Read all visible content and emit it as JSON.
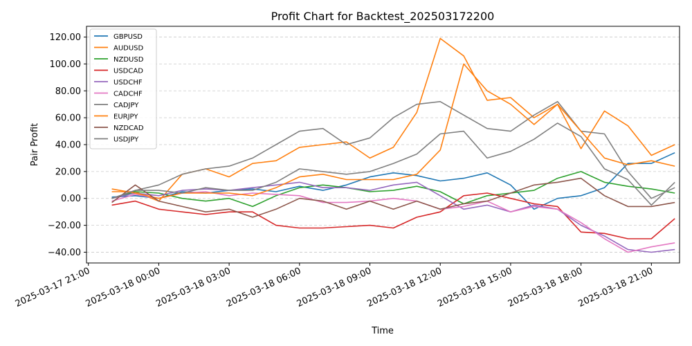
{
  "chart_data": {
    "type": "line",
    "title": "Profit Chart for Backtest_202503172200",
    "xlabel": "Time",
    "ylabel": "Pair Profit",
    "x_tick_labels": [
      "2025-03-17 21:00",
      "2025-03-18 00:00",
      "2025-03-18 03:00",
      "2025-03-18 06:00",
      "2025-03-18 09:00",
      "2025-03-18 12:00",
      "2025-03-18 15:00",
      "2025-03-18 18:00",
      "2025-03-18 21:00"
    ],
    "x_tick_hours": [
      0,
      3,
      6,
      9,
      12,
      15,
      18,
      21,
      24
    ],
    "xlim_hours": [
      -0.08,
      25.2
    ],
    "y_ticks": [
      -40,
      -20,
      0,
      20,
      40,
      60,
      80,
      100,
      120
    ],
    "y_tick_labels": [
      "−40.00",
      "−20.00",
      "0.00",
      "20.00",
      "40.00",
      "60.00",
      "80.00",
      "100.00",
      "120.00"
    ],
    "ylim": [
      -48,
      128
    ],
    "grid": "y-dashed",
    "legend_position": "top-left",
    "x_hours": [
      1,
      2,
      3,
      4,
      5,
      6,
      7,
      8,
      9,
      10,
      11,
      12,
      13,
      14,
      15,
      16,
      17,
      18,
      19,
      20,
      21,
      22,
      23,
      24,
      25
    ],
    "series": [
      {
        "name": "GBPUSD",
        "color": "#1f77b4",
        "values": [
          1,
          2,
          0,
          5,
          4,
          6,
          7,
          5,
          9,
          6,
          10,
          16,
          19,
          17,
          13,
          15,
          19,
          10,
          -8,
          0,
          2,
          8,
          26,
          26,
          34
        ]
      },
      {
        "name": "AUDUSD",
        "color": "#ff7f0e",
        "values": [
          5,
          5,
          -2,
          18,
          22,
          16,
          26,
          28,
          38,
          40,
          42,
          30,
          38,
          64,
          119,
          106,
          73,
          75,
          60,
          70,
          37,
          65,
          54,
          32,
          40
        ]
      },
      {
        "name": "NZDUSD",
        "color": "#2ca02c",
        "values": [
          0,
          5,
          4,
          0,
          -2,
          0,
          -6,
          2,
          8,
          10,
          8,
          5,
          6,
          9,
          5,
          -4,
          2,
          4,
          6,
          15,
          20,
          12,
          9,
          7,
          4
        ]
      },
      {
        "name": "USDCAD",
        "color": "#d62728",
        "values": [
          -5,
          -2,
          -8,
          -10,
          -12,
          -10,
          -10,
          -20,
          -22,
          -22,
          -21,
          -20,
          -22,
          -14,
          -10,
          2,
          4,
          0,
          -4,
          -6,
          -25,
          -26,
          -30,
          -30,
          -15
        ]
      },
      {
        "name": "USDCHF",
        "color": "#9467bd",
        "values": [
          0,
          4,
          2,
          6,
          7,
          6,
          8,
          10,
          12,
          8,
          8,
          6,
          10,
          12,
          2,
          -8,
          -5,
          -10,
          -5,
          -8,
          -20,
          -28,
          -38,
          -40,
          -38
        ]
      },
      {
        "name": "CADCHF",
        "color": "#e377c2",
        "values": [
          -2,
          3,
          0,
          4,
          5,
          2,
          4,
          3,
          2,
          -3,
          -3,
          -2,
          0,
          -2,
          -8,
          -6,
          -2,
          -10,
          -6,
          -8,
          -18,
          -30,
          -40,
          -36,
          -33
        ]
      },
      {
        "name": "CADJPY",
        "color": "#7f7f7f",
        "values": [
          0,
          6,
          10,
          18,
          22,
          24,
          30,
          40,
          50,
          52,
          40,
          45,
          60,
          70,
          72,
          62,
          52,
          50,
          62,
          72,
          50,
          48,
          20,
          0,
          8
        ]
      },
      {
        "name": "EURJPY",
        "color": "#ff7f0e",
        "values": [
          7,
          4,
          0,
          4,
          4,
          4,
          2,
          8,
          16,
          18,
          14,
          14,
          14,
          18,
          36,
          100,
          80,
          70,
          55,
          70,
          50,
          30,
          25,
          28,
          24
        ]
      },
      {
        "name": "NZDCAD",
        "color": "#8c564b",
        "values": [
          -3,
          10,
          -2,
          -6,
          -10,
          -8,
          -14,
          -8,
          0,
          -2,
          -8,
          -2,
          -8,
          -2,
          -8,
          -4,
          -2,
          4,
          10,
          12,
          15,
          2,
          -6,
          -6,
          -3
        ]
      },
      {
        "name": "USDJPY",
        "color": "#7f7f7f",
        "values": [
          0,
          6,
          6,
          4,
          8,
          6,
          6,
          12,
          22,
          20,
          18,
          20,
          26,
          33,
          48,
          50,
          30,
          35,
          44,
          56,
          46,
          22,
          14,
          -5,
          12
        ]
      }
    ]
  }
}
